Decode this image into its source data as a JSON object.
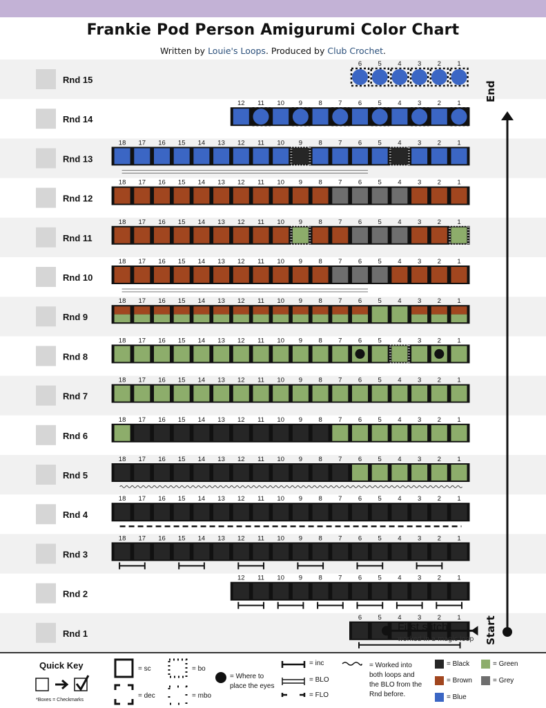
{
  "title": "Frankie Pod Person Amigurumi Color Chart",
  "subtitle": {
    "prefix": "Written by ",
    "author": "Louie's Loops",
    "middle": ". Produced by ",
    "producer": "Club Crochet",
    "suffix": "."
  },
  "labels": {
    "end": "End",
    "start": "Start",
    "first_stitch": "First stitch",
    "first_stitch_note": "worked in a magic loop"
  },
  "colors": {
    "band": "#c3b2d6",
    "row_light": "#f1f1f1",
    "checkbox": "#d6d6d6",
    "K": "#262626",
    "B": "#a1461f",
    "G": "#8dad6b",
    "Y": "#6e6e6e",
    "U": "#3b66c4"
  },
  "rows": [
    {
      "label": "Rnd 15",
      "stitches": "UUUUUU",
      "style": "bo"
    },
    {
      "label": "Rnd 14",
      "stitches": "UUUUUUUUUUUU",
      "dec": [
        1,
        3,
        5,
        7,
        9,
        11
      ],
      "style": "mixed"
    },
    {
      "label": "Rnd 13",
      "stitches": "UUUUUUUUUKUUUUKUUU",
      "mbo": [
        9,
        14
      ],
      "under": "flo"
    },
    {
      "label": "Rnd 12",
      "stitches": "BBBBBBBBBBBYYYYBBB"
    },
    {
      "label": "Rnd 11",
      "stitches": "BBBBBBBBBGBBYYYBBG",
      "mbo": [
        9,
        17
      ]
    },
    {
      "label": "Rnd 10",
      "stitches": "BBBBBBBBBBBYYYBBBB",
      "under": "flo"
    },
    {
      "label": "Rnd 9",
      "stitches": "HHHHHHHHHHHHHGGHHH"
    },
    {
      "label": "Rnd 8",
      "stitches": "GGGGGGGGGGGGGGGGGG",
      "eyes": [
        12,
        16
      ],
      "mbo": [
        14
      ]
    },
    {
      "label": "Rnd 7",
      "stitches": "GGGGGGGGGGGGGGGGGG"
    },
    {
      "label": "Rnd 6",
      "stitches": "GKKKKKKKKKKGGGGGGG"
    },
    {
      "label": "Rnd 5",
      "stitches": "KKKKKKKKKKKKGGGGGG",
      "under": "wavy"
    },
    {
      "label": "Rnd 4",
      "stitches": "KKKKKKKKKKKKKKKKKK",
      "under": "dashed"
    },
    {
      "label": "Rnd 3",
      "stitches": "KKKKKKKKKKKKKKKKKK",
      "under": "inc3"
    },
    {
      "label": "Rnd 2",
      "stitches": "KKKKKKKKKKKK",
      "under": "inc2"
    },
    {
      "label": "Rnd 1",
      "stitches": "KKKKKK",
      "under": "blo"
    }
  ],
  "key": {
    "quick_key": "Quick Key",
    "boxes_note": "*Boxes = Checkmarks",
    "sc": "= sc",
    "bo": "= bo",
    "dec": "= dec",
    "mbo": "= mbo",
    "eyes1": "= Where to",
    "eyes2": "place the eyes",
    "inc": "= inc",
    "blo": "= BLO",
    "flo": "= FLO",
    "worked1": "= Worked into",
    "worked2": "both loops and",
    "worked3": "the BLO from the",
    "worked4": "Rnd before.",
    "black": "= Black",
    "brown": "= Brown",
    "blue": "= Blue",
    "green": "= Green",
    "grey": "= Grey"
  }
}
